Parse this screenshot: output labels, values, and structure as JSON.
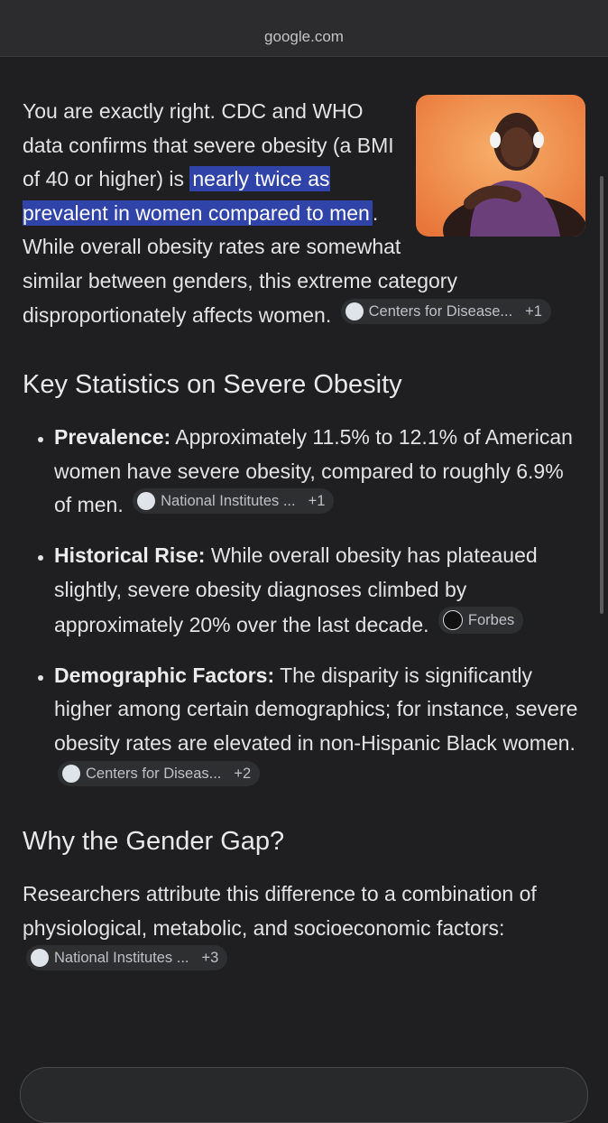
{
  "url": "google.com",
  "intro": {
    "text_before": "You are exactly right. CDC and WHO data confirms that severe obesity (a BMI of 40 or higher) is ",
    "highlight": "nearly twice as prevalent in women compared to men",
    "text_after": ". While overall obesity rates are somewhat similar between genders, this extreme category disproportionately affects women.",
    "source": {
      "name": "Centers for Disease...",
      "more": "+1"
    }
  },
  "section1": {
    "heading": "Key Statistics on Severe Obesity",
    "items": [
      {
        "label": "Prevalence:",
        "text": " Approximately 11.5% to 12.1% of American women have severe obesity, compared to roughly 6.9% of men.",
        "source": {
          "name": "National Institutes ...",
          "more": "+1"
        }
      },
      {
        "label": "Historical Rise:",
        "text": " While overall obesity has plateaued slightly, severe obesity diagnoses climbed by approximately 20% over the last decade.",
        "source": {
          "name": "Forbes"
        }
      },
      {
        "label": "Demographic Factors:",
        "text": " The disparity is significantly higher among certain demographics; for instance, severe obesity rates are elevated in non-Hispanic Black women.",
        "source": {
          "name": "Centers for Diseas...",
          "more": "+2"
        }
      }
    ]
  },
  "section2": {
    "heading": "Why the Gender Gap?",
    "text": "Researchers attribute this difference to a combination of physiological, metabolic, and socioeconomic factors:",
    "source": {
      "name": "National Institutes ...",
      "more": "+3"
    }
  }
}
